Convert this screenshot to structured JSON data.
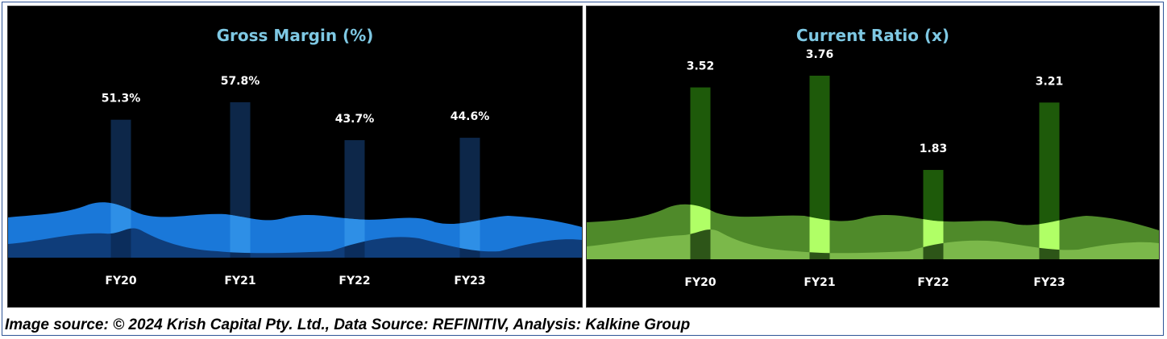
{
  "caption": "Image source: © 2024 Krish Capital Pty. Ltd., Data Source: REFINITIV, Analysis: Kalkine Group",
  "chart_data": [
    {
      "type": "bar",
      "title": "Gross Margin (%)",
      "categories": [
        "FY20",
        "FY21",
        "FY22",
        "FY23"
      ],
      "values": [
        51.3,
        57.8,
        43.7,
        44.6
      ],
      "data_labels": [
        "51.3%",
        "57.8%",
        "43.7%",
        "44.6%"
      ],
      "unit": "%",
      "colors": {
        "title": "#7ec8e3",
        "bar": "#0d2749",
        "wave_back": "#1a78d9",
        "wave_front": "#0f3d7a",
        "highlight": "#2e8fe6",
        "highlight_dark": "#0b2d5c",
        "label": "#ffffff"
      }
    },
    {
      "type": "bar",
      "title": "Current Ratio (x)",
      "categories": [
        "FY20",
        "FY21",
        "FY22",
        "FY23"
      ],
      "values": [
        3.52,
        3.76,
        1.83,
        3.21
      ],
      "data_labels": [
        "3.52",
        "3.76",
        "1.83",
        "3.21"
      ],
      "unit": "x",
      "colors": {
        "title": "#7ec8e3",
        "bar": "#1e5a0a",
        "wave_back": "#4f8a2a",
        "wave_front": "#7bb84a",
        "highlight": "#b0ff66",
        "highlight_dark": "#2d5518",
        "label": "#ffffff"
      }
    }
  ]
}
